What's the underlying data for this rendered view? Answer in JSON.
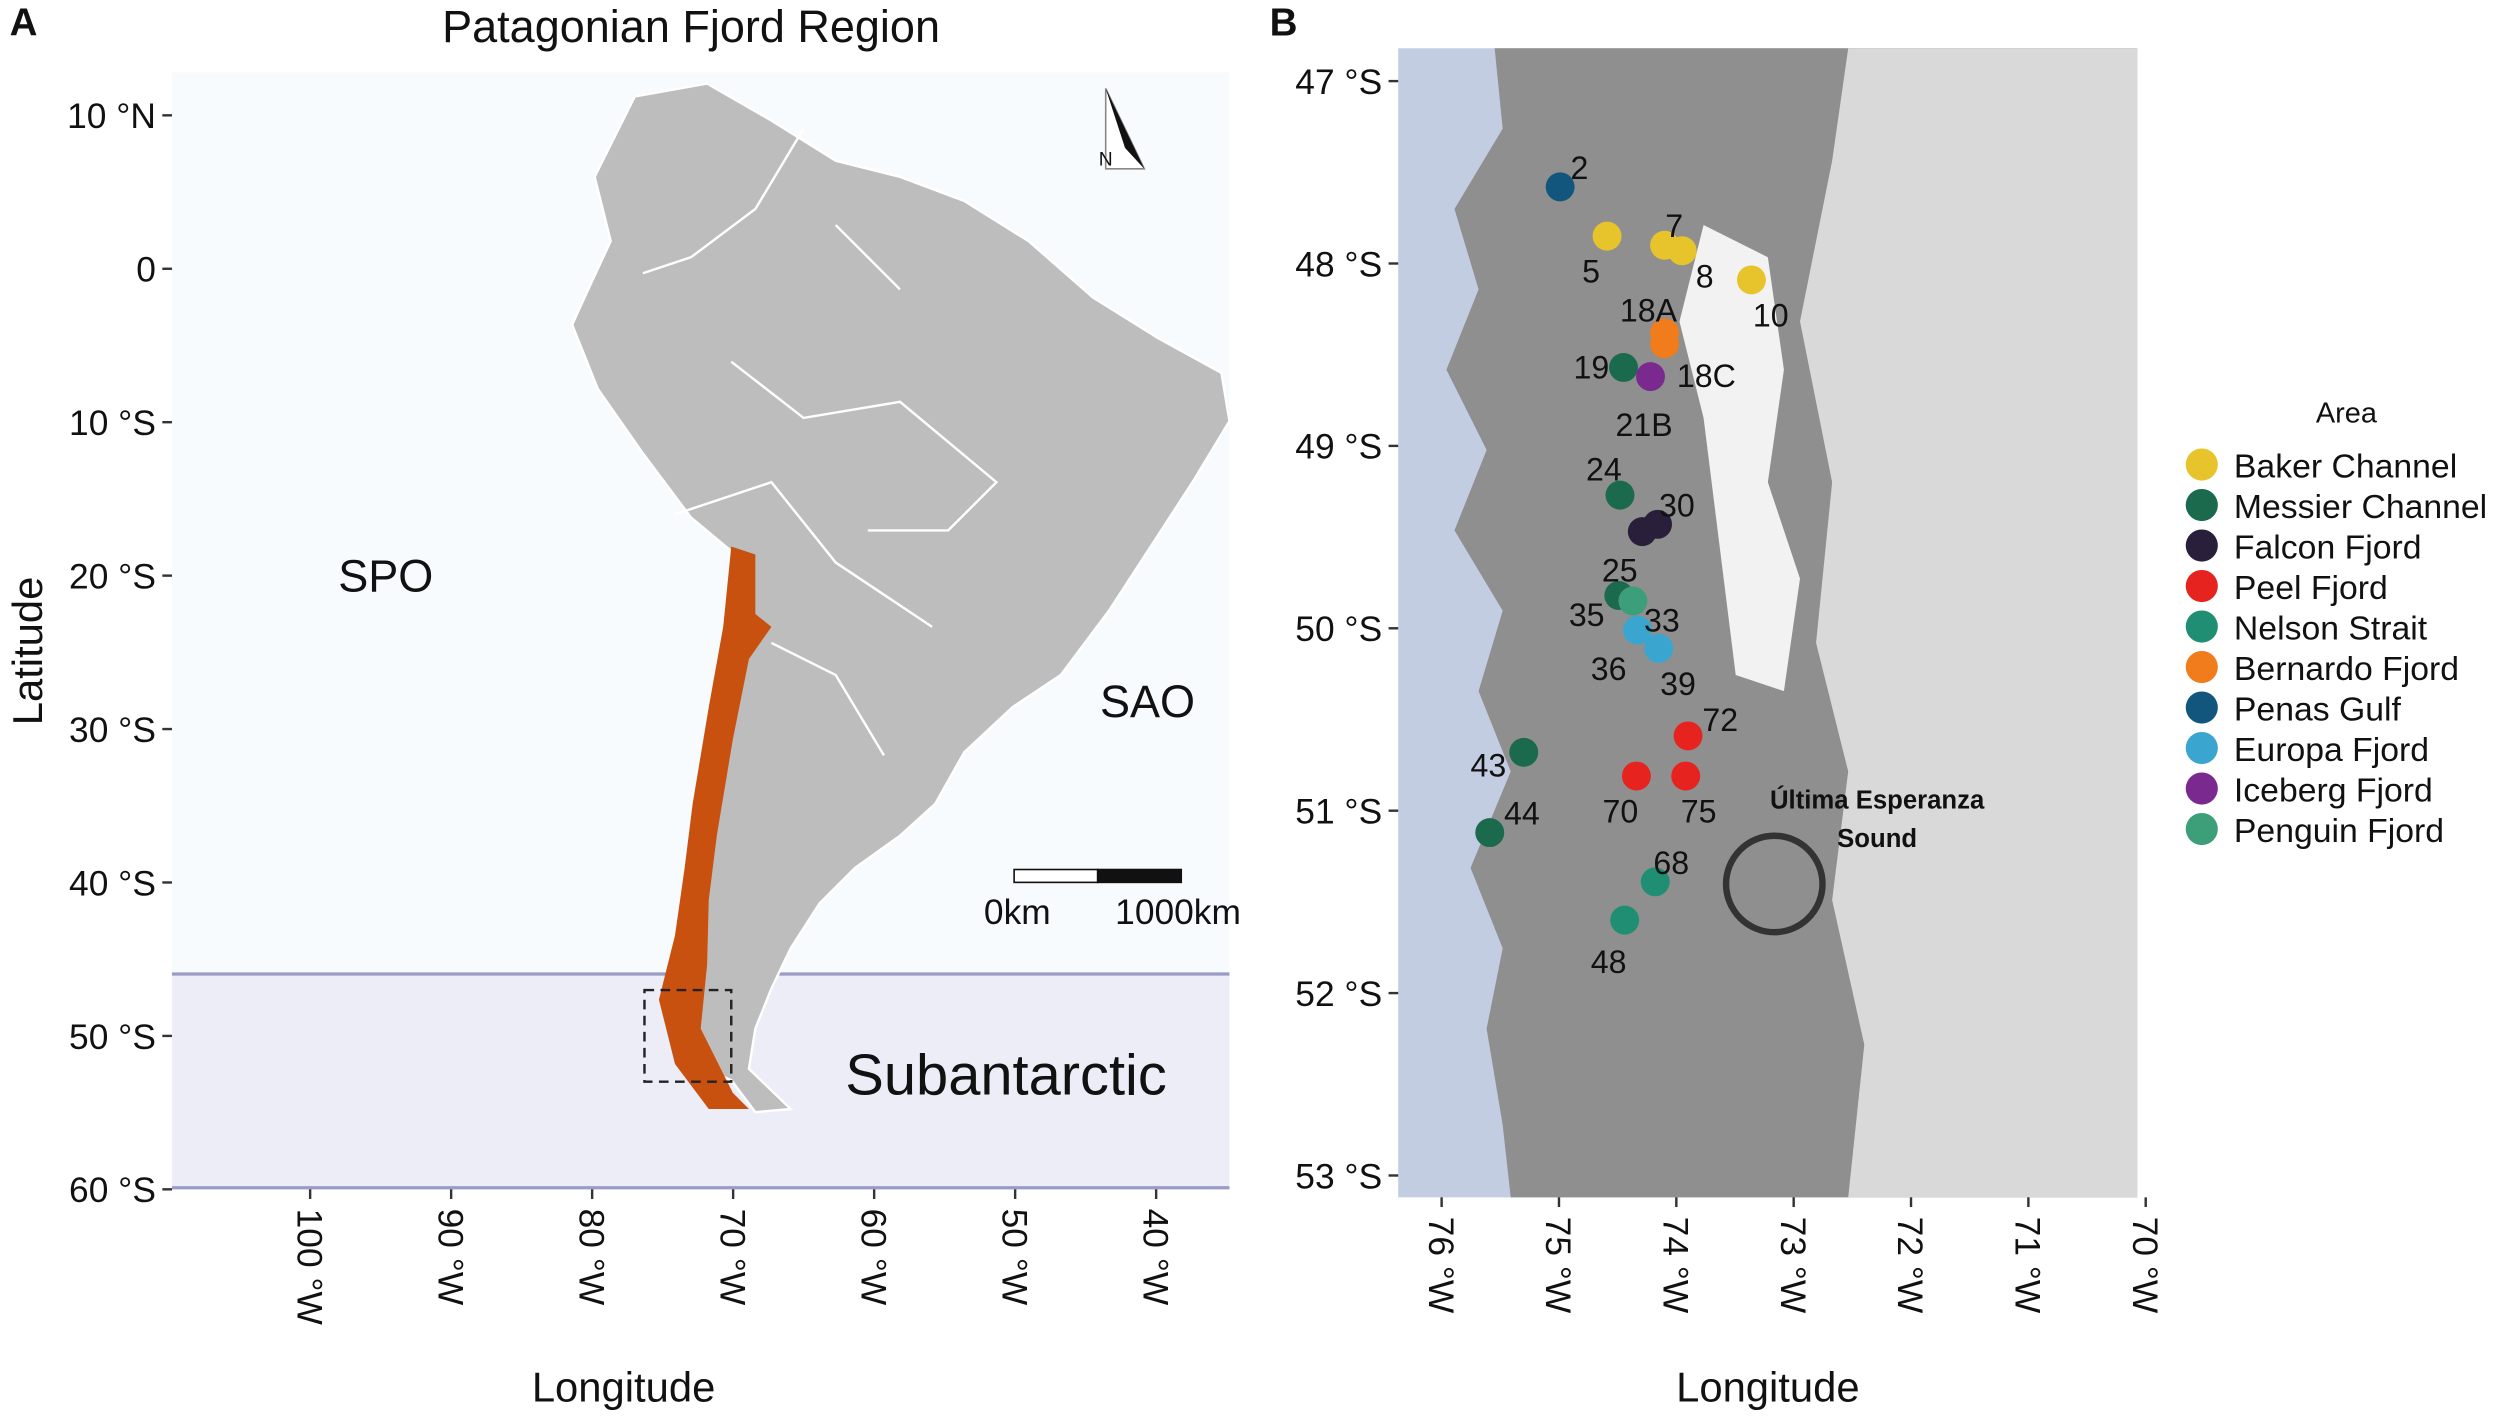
{
  "panel_a": {
    "label": "A",
    "title": "Patagonian Fjord Region",
    "x_label": "Longitude",
    "y_label": "Latitude",
    "xlim": [
      -109.8,
      -34.8
    ],
    "ylim": [
      -60,
      12.8
    ],
    "xticks": [
      {
        "value": -100,
        "label": "100 °W"
      },
      {
        "value": -90,
        "label": "90 °W"
      },
      {
        "value": -80,
        "label": "80 °W"
      },
      {
        "value": -70,
        "label": "70 °W"
      },
      {
        "value": -60,
        "label": "60 °W"
      },
      {
        "value": -50,
        "label": "50 °W"
      },
      {
        "value": -40,
        "label": "40 °W"
      }
    ],
    "yticks": [
      {
        "value": 10,
        "label": "10 °N"
      },
      0,
      {
        "value": -10,
        "label": "10 °S"
      },
      {
        "value": -20,
        "label": "20 °S"
      },
      {
        "value": -30,
        "label": "30 °S"
      },
      {
        "value": -40,
        "label": "40 °S"
      },
      {
        "value": -50,
        "label": "50 °S"
      },
      {
        "value": -60,
        "label": "60 °S"
      }
    ],
    "regions": [
      "SPO",
      "SAO",
      "Subantarctic"
    ],
    "scale_bar": [
      "0km",
      "1000km"
    ],
    "north": "N"
  },
  "panel_b": {
    "label": "B",
    "x_label": "Longitude",
    "xlim": [
      -76.37,
      -70.07
    ],
    "ylim": [
      -53.12,
      -46.82
    ],
    "xticks": [
      {
        "value": -76,
        "label": "76 °W"
      },
      {
        "value": -75,
        "label": "75 °W"
      },
      {
        "value": -74,
        "label": "74 °W"
      },
      {
        "value": -73,
        "label": "73 °W"
      },
      {
        "value": -72,
        "label": "72 °W"
      },
      {
        "value": -71,
        "label": "71 °W"
      },
      {
        "value": -70,
        "label": "70 °W"
      }
    ],
    "yticks": [
      {
        "value": -47,
        "label": "47 °S"
      },
      {
        "value": -48,
        "label": "48 °S"
      },
      {
        "value": -49,
        "label": "49 °S"
      },
      {
        "value": -50,
        "label": "50 °S"
      },
      {
        "value": -51,
        "label": "51 °S"
      },
      {
        "value": -52,
        "label": "52 °S"
      },
      {
        "value": -53,
        "label": "53 °S"
      }
    ],
    "annotation": [
      "Última Esperanza",
      "Sound"
    ],
    "legend_title": "Area",
    "areas": [
      {
        "name": "Baker Channel",
        "color": "#e8c42c",
        "stations": [
          {
            "label": "5",
            "lon": -74.59,
            "lat": -47.85
          },
          {
            "label": "7",
            "lon": -74.1,
            "lat": -47.9
          },
          {
            "label": "8",
            "lon": -73.95,
            "lat": -47.93
          },
          {
            "label": "10",
            "lon": -73.36,
            "lat": -48.09
          }
        ]
      },
      {
        "name": "Messier Channel",
        "color": "#1c6a4e",
        "stations": [
          {
            "label": "19",
            "lon": -74.45,
            "lat": -48.57
          },
          {
            "label": "24",
            "lon": -74.48,
            "lat": -49.27
          },
          {
            "label": "35",
            "lon": -74.49,
            "lat": -49.82
          },
          {
            "label": "43",
            "lon": -75.3,
            "lat": -50.68
          },
          {
            "label": "44",
            "lon": -75.59,
            "lat": -51.12
          }
        ]
      },
      {
        "name": "Falcon Fjord",
        "color": "#2a1f3b",
        "stations": [
          {
            "label": "30",
            "lon": -74.16,
            "lat": -49.43
          },
          {
            "label": "25",
            "lon": -74.29,
            "lat": -49.47
          }
        ]
      },
      {
        "name": "Peel Fjord",
        "color": "#e6231f",
        "stations": [
          {
            "label": "72",
            "lon": -73.9,
            "lat": -50.59
          },
          {
            "label": "70",
            "lon": -74.34,
            "lat": -50.81
          },
          {
            "label": "75",
            "lon": -73.92,
            "lat": -50.81
          }
        ]
      },
      {
        "name": "Nelson Strait",
        "color": "#1f8e72",
        "stations": [
          {
            "label": "68",
            "lon": -74.18,
            "lat": -51.39
          },
          {
            "label": "48",
            "lon": -74.44,
            "lat": -51.6
          }
        ]
      },
      {
        "name": "Bernardo Fjord",
        "color": "#f07c1c",
        "stations": [
          {
            "label": "18A",
            "lon": -74.1,
            "lat": -48.38
          },
          {
            "label": "18C",
            "lon": -74.1,
            "lat": -48.44
          }
        ]
      },
      {
        "name": "Penas Gulf",
        "color": "#12567e",
        "stations": [
          {
            "label": "2",
            "lon": -74.99,
            "lat": -47.58
          }
        ]
      },
      {
        "name": "Europa Fjord",
        "color": "#3aa6d0",
        "stations": [
          {
            "label": "36",
            "lon": -74.33,
            "lat": -50.01
          },
          {
            "label": "39",
            "lon": -74.15,
            "lat": -50.11
          }
        ]
      },
      {
        "name": "Iceberg Fjord",
        "color": "#7a2a8e",
        "stations": [
          {
            "label": "21B",
            "lon": -74.22,
            "lat": -48.62
          }
        ]
      },
      {
        "name": "Penguin Fjord",
        "color": "#3c9f79",
        "stations": [
          {
            "label": "33",
            "lon": -74.37,
            "lat": -49.85
          }
        ]
      }
    ]
  }
}
